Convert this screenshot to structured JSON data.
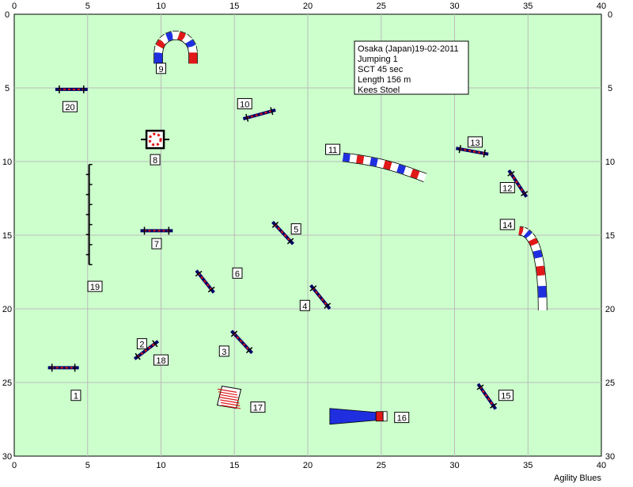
{
  "course": {
    "info_lines": [
      "Osaka (Japan)19-02-2011",
      "Jumping 1",
      "SCT 45 sec",
      "Length  156 m",
      "Kees Stoel"
    ],
    "credit": "Agility Blues"
  },
  "axes": {
    "x_ticks": [
      0,
      5,
      10,
      15,
      20,
      25,
      30,
      35,
      40
    ],
    "y_ticks": [
      0,
      5,
      10,
      15,
      20,
      25,
      30
    ],
    "x_range": [
      0,
      40
    ],
    "y_range": [
      0,
      30
    ]
  },
  "colors": {
    "field": "#ccffcc",
    "grid": "#bbbbbb",
    "bar_blue": "#1f2fe0",
    "bar_red": "#e01818",
    "pole_dark": "#000066"
  },
  "obstacles": [
    {
      "number": "1",
      "type": "bar-jump",
      "x1": 2.3,
      "y1": 24.0,
      "x2": 4.4,
      "y2": 24.0,
      "label_x": 4.2,
      "label_y": 25.9
    },
    {
      "number": "2",
      "type": "bar-jump",
      "x1": 8.2,
      "y1": 23.4,
      "x2": 9.8,
      "y2": 22.2,
      "label_x": 8.7,
      "label_y": 22.4
    },
    {
      "number": "3",
      "type": "bar-jump",
      "x1": 14.8,
      "y1": 21.5,
      "x2": 16.2,
      "y2": 23.0,
      "label_x": 14.3,
      "label_y": 22.9
    },
    {
      "number": "4",
      "type": "bar-jump",
      "x1": 20.2,
      "y1": 18.4,
      "x2": 21.5,
      "y2": 20.0,
      "label_x": 19.8,
      "label_y": 19.8
    },
    {
      "number": "5",
      "type": "bar-jump",
      "x1": 17.6,
      "y1": 14.1,
      "x2": 19.0,
      "y2": 15.6,
      "label_x": 19.2,
      "label_y": 14.6
    },
    {
      "number": "6",
      "type": "bar-jump",
      "x1": 12.4,
      "y1": 17.4,
      "x2": 13.6,
      "y2": 18.9,
      "label_x": 15.2,
      "label_y": 17.6
    },
    {
      "number": "7",
      "type": "bar-jump",
      "x1": 8.6,
      "y1": 14.7,
      "x2": 10.8,
      "y2": 14.7,
      "label_x": 9.7,
      "label_y": 15.6
    },
    {
      "number": "8",
      "type": "tire",
      "x1": 9.6,
      "y1": 8.5,
      "label_x": 9.6,
      "label_y": 9.9
    },
    {
      "number": "9",
      "type": "tunnel-arc",
      "x1": 11.0,
      "y1": 2.6,
      "label_x": 10.0,
      "label_y": 3.7
    },
    {
      "number": "10",
      "type": "bar-jump",
      "x1": 15.6,
      "y1": 7.1,
      "x2": 17.8,
      "y2": 6.5,
      "label_x": 15.7,
      "label_y": 6.1
    },
    {
      "number": "11",
      "type": "tunnel",
      "x1": 22.4,
      "y1": 9.7,
      "x2": 28.0,
      "y2": 11.1,
      "label_x": 21.7,
      "label_y": 9.2
    },
    {
      "number": "12",
      "type": "bar-jump",
      "x1": 33.7,
      "y1": 10.6,
      "x2": 34.9,
      "y2": 12.4,
      "label_x": 33.6,
      "label_y": 11.8
    },
    {
      "number": "13",
      "type": "bar-jump",
      "x1": 30.1,
      "y1": 9.1,
      "x2": 32.3,
      "y2": 9.5,
      "label_x": 31.4,
      "label_y": 8.7
    },
    {
      "number": "14",
      "type": "tunnel-curve",
      "x1": 34.4,
      "y1": 14.7,
      "x2": 36.0,
      "y2": 20.1,
      "label_x": 33.6,
      "label_y": 14.3
    },
    {
      "number": "15",
      "type": "bar-jump",
      "x1": 31.6,
      "y1": 25.1,
      "x2": 32.8,
      "y2": 26.8,
      "label_x": 33.5,
      "label_y": 25.9
    },
    {
      "number": "16",
      "type": "chute",
      "x1": 21.5,
      "y1": 27.3,
      "x2": 25.4,
      "y2": 27.3,
      "label_x": 26.4,
      "label_y": 27.4
    },
    {
      "number": "17",
      "type": "tire-stack",
      "x1": 14.8,
      "y1": 26.0,
      "label_x": 16.6,
      "label_y": 26.7
    },
    {
      "number": "18",
      "type": "label-only",
      "label_x": 10.0,
      "label_y": 23.5
    },
    {
      "number": "19",
      "type": "weave",
      "x1": 5.1,
      "y1": 10.2,
      "x2": 5.1,
      "y2": 17.0,
      "label_x": 5.5,
      "label_y": 18.5
    },
    {
      "number": "20",
      "type": "bar-jump",
      "x1": 2.8,
      "y1": 5.1,
      "x2": 5.0,
      "y2": 5.1,
      "label_x": 3.8,
      "label_y": 6.3
    }
  ]
}
